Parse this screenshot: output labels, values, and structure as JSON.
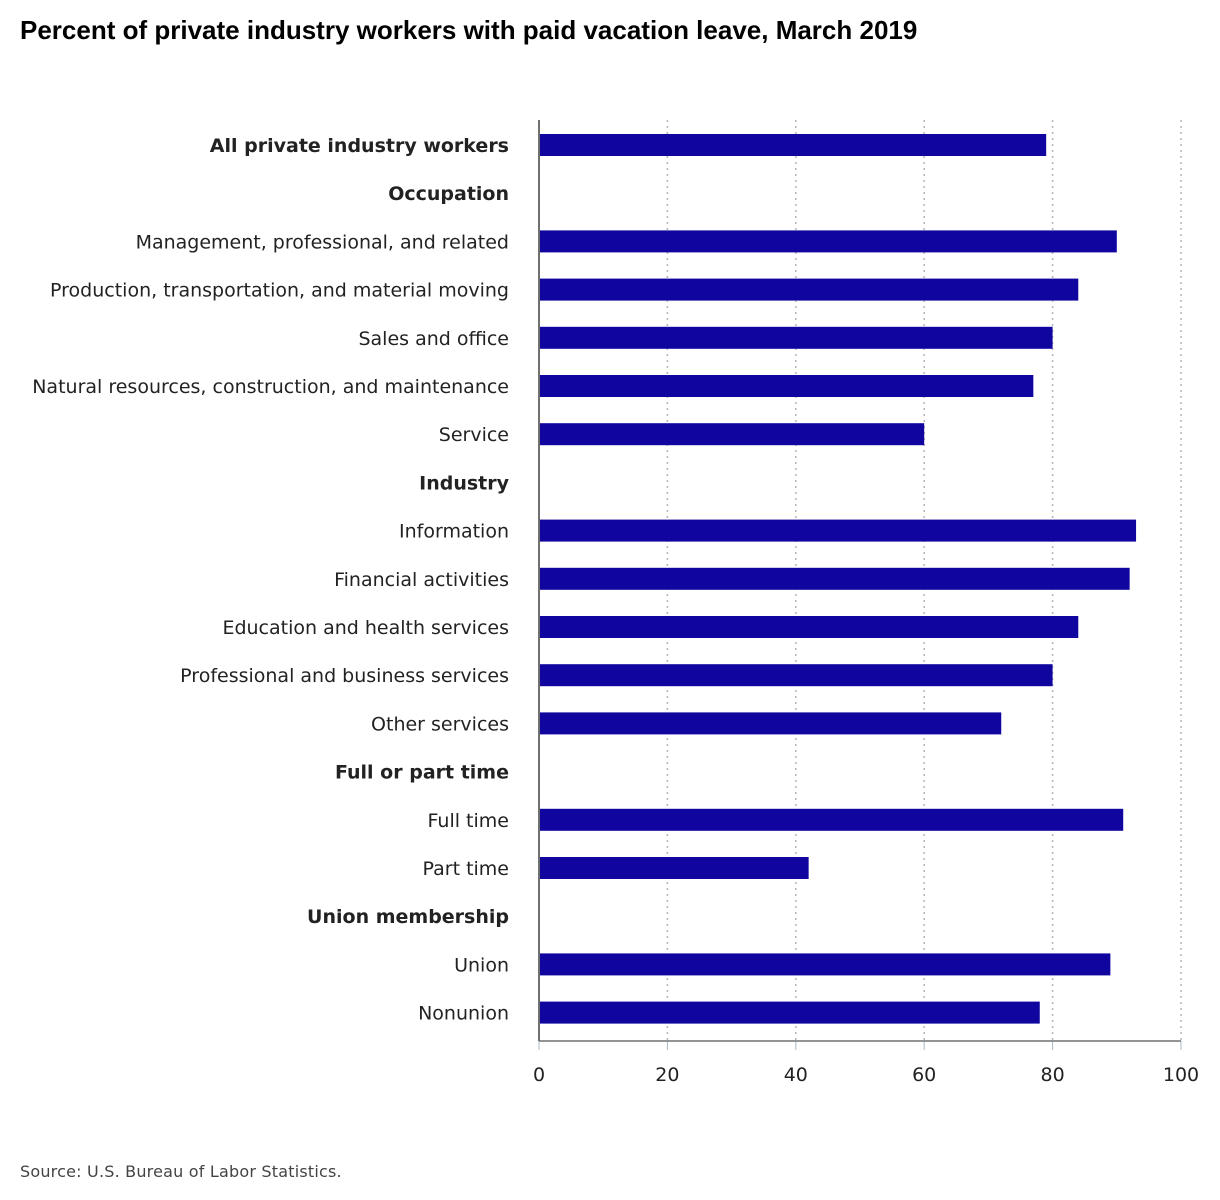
{
  "chart_data": {
    "type": "bar",
    "orientation": "horizontal",
    "title": "Percent of private industry workers with paid vacation leave, March 2019",
    "xlabel": "",
    "ylabel": "",
    "xlim": [
      0,
      100
    ],
    "x_ticks": [
      0,
      20,
      40,
      60,
      80,
      100
    ],
    "grid": true,
    "bar_color": "#10069f",
    "header_color": "#a00000",
    "label_color": "#222222",
    "rows": [
      {
        "label": "All private industry workers",
        "value": 79,
        "style": "bold"
      },
      {
        "label": "Occupation",
        "value": null,
        "style": "header"
      },
      {
        "label": "Management, professional, and related",
        "value": 90,
        "style": "normal"
      },
      {
        "label": "Production, transportation, and material moving",
        "value": 84,
        "style": "normal"
      },
      {
        "label": "Sales and office",
        "value": 80,
        "style": "normal"
      },
      {
        "label": "Natural resources, construction, and maintenance",
        "value": 77,
        "style": "normal"
      },
      {
        "label": "Service",
        "value": 60,
        "style": "normal"
      },
      {
        "label": "Industry",
        "value": null,
        "style": "header"
      },
      {
        "label": "Information",
        "value": 93,
        "style": "normal"
      },
      {
        "label": "Financial activities",
        "value": 92,
        "style": "normal"
      },
      {
        "label": "Education and health services",
        "value": 84,
        "style": "normal"
      },
      {
        "label": "Professional and business services",
        "value": 80,
        "style": "normal"
      },
      {
        "label": "Other services",
        "value": 72,
        "style": "normal"
      },
      {
        "label": "Full or part time",
        "value": null,
        "style": "header"
      },
      {
        "label": "Full time",
        "value": 91,
        "style": "normal"
      },
      {
        "label": "Part time",
        "value": 42,
        "style": "normal"
      },
      {
        "label": "Union membership",
        "value": null,
        "style": "header"
      },
      {
        "label": "Union",
        "value": 89,
        "style": "normal"
      },
      {
        "label": "Nonunion",
        "value": 78,
        "style": "normal"
      }
    ]
  },
  "source": "Source: U.S. Bureau of Labor Statistics."
}
